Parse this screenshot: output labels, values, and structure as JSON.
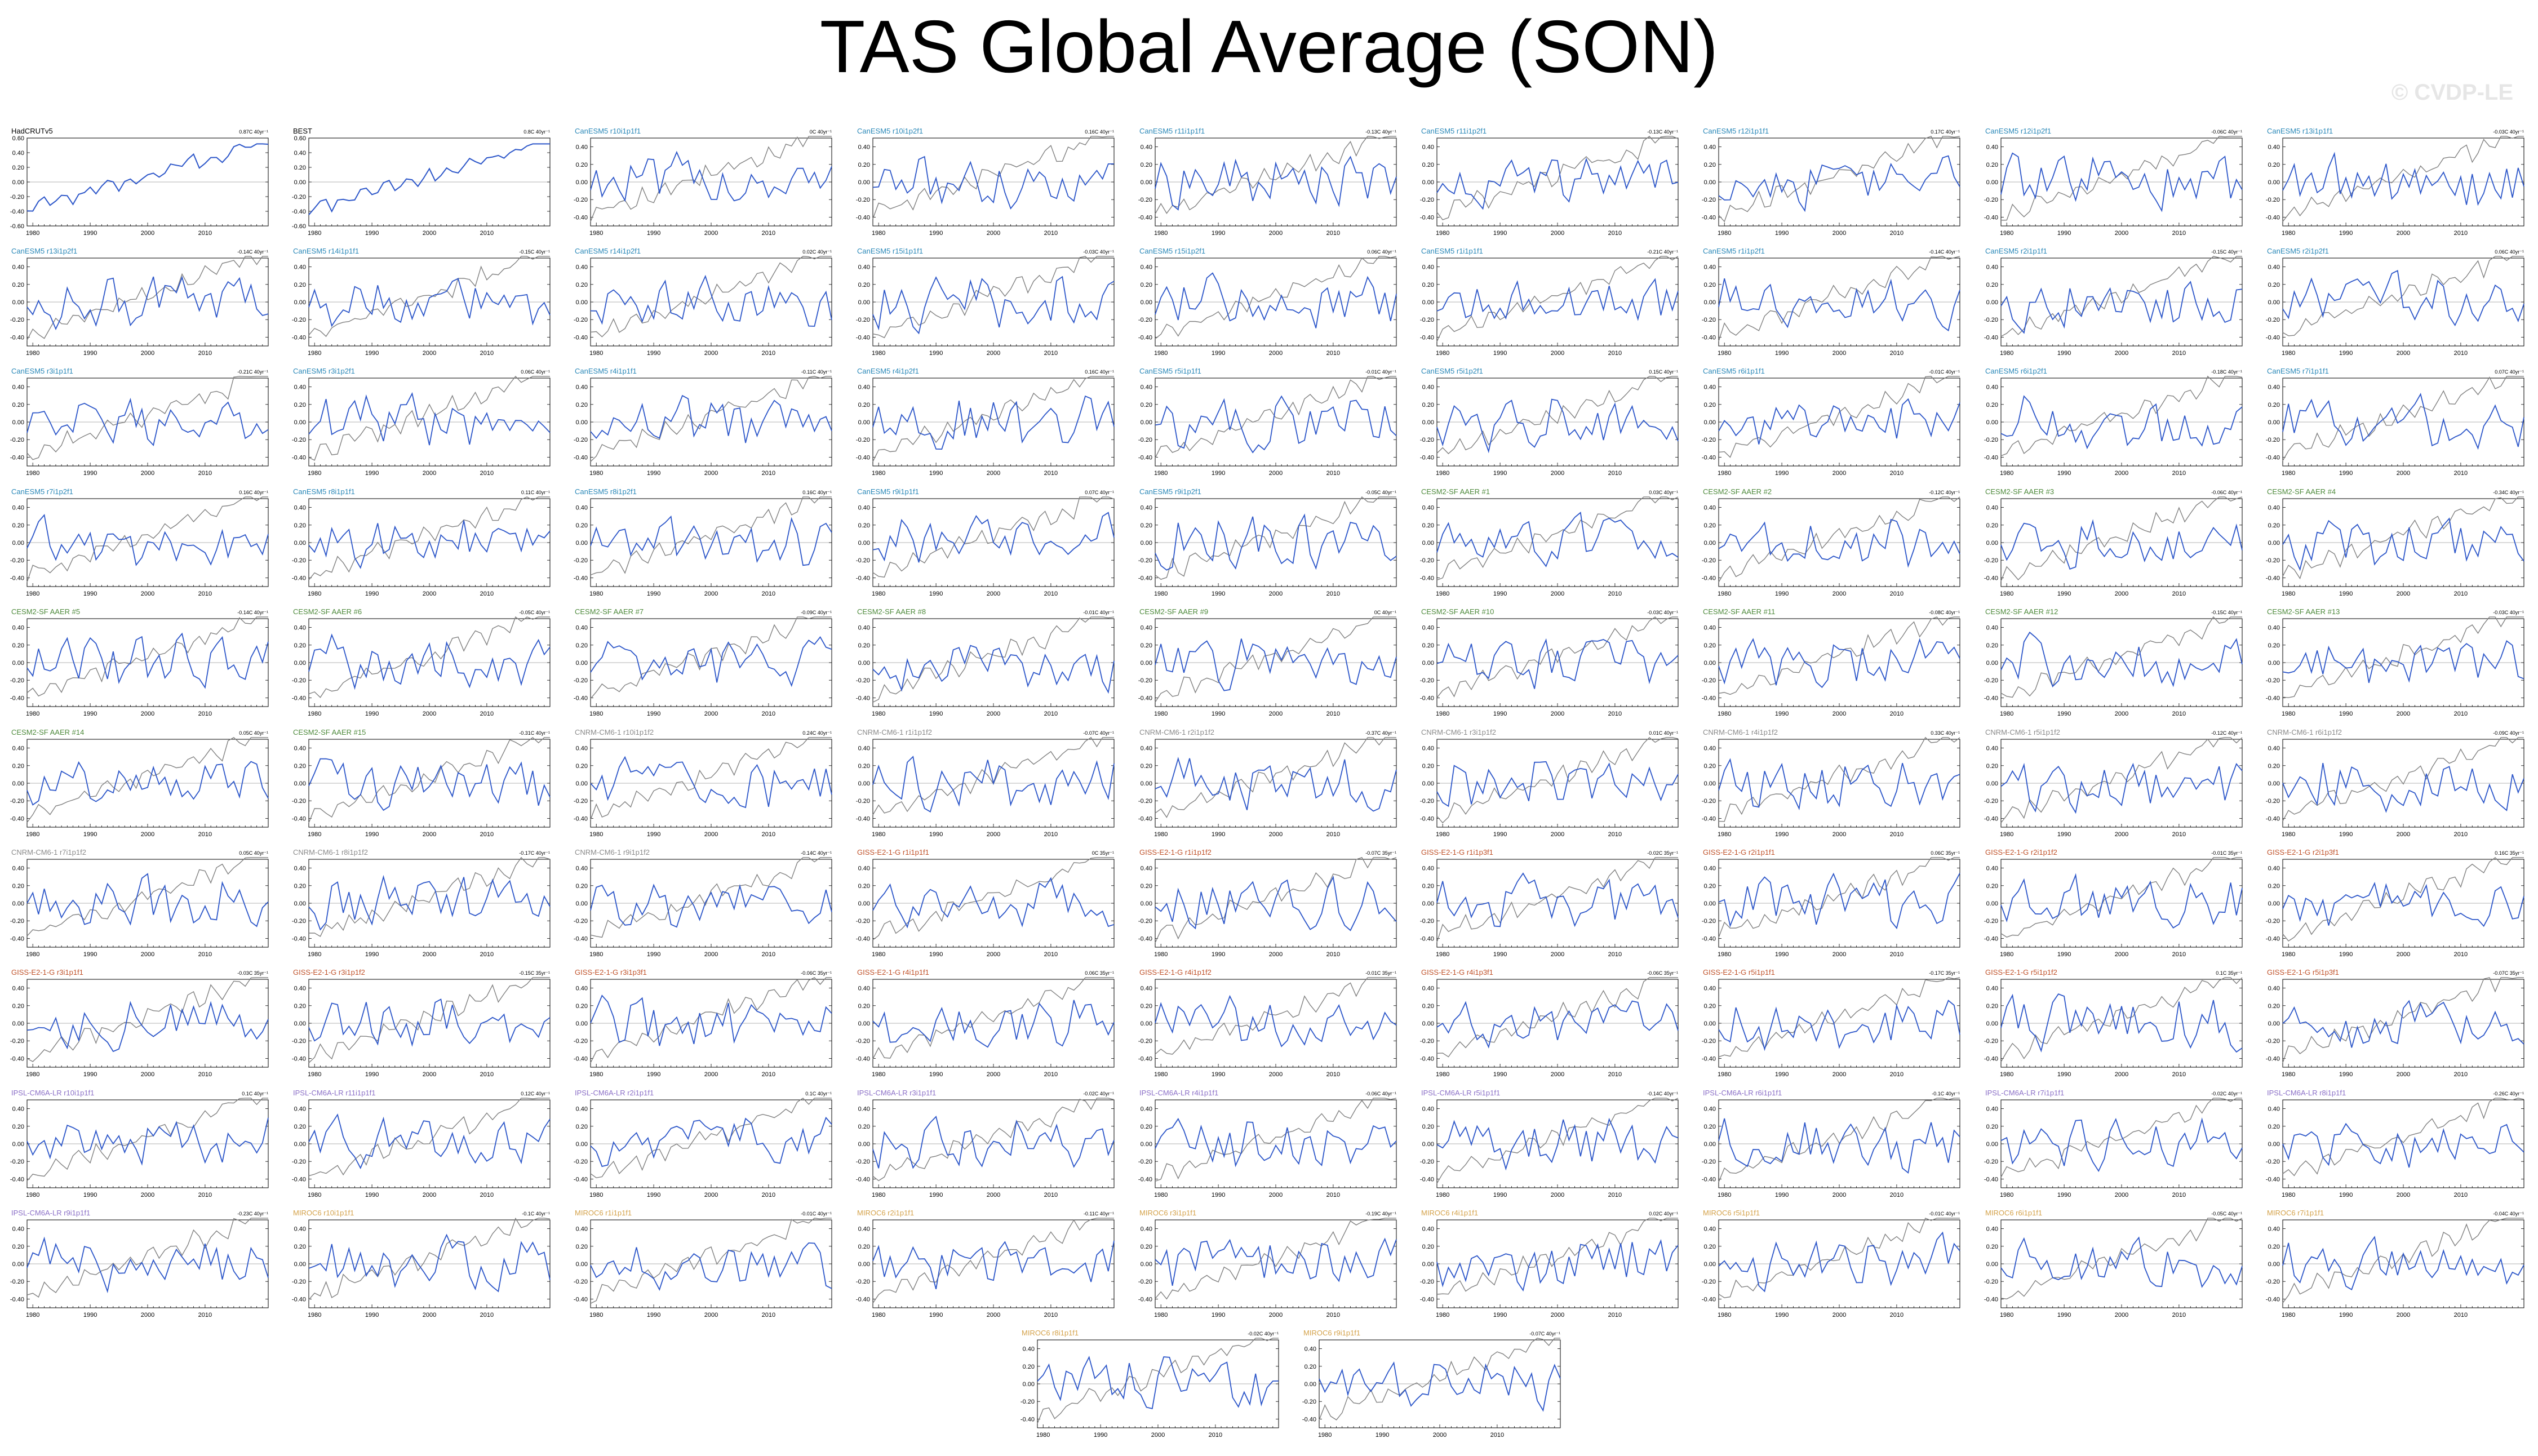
{
  "title": "TAS Global Average (SON)",
  "watermark": "© CVDP-LE",
  "chart_data": {
    "type": "line",
    "x_range": [
      1979,
      2021
    ],
    "x_ticks": [
      1980,
      1990,
      2000,
      2010
    ],
    "obs_y_ticks": [
      "0.60",
      "0.40",
      "0.20",
      "0.00",
      "-0.20",
      "-0.40",
      "-0.60"
    ],
    "model_y_ticks": [
      "0.40",
      "0.20",
      "0.00",
      "-0.20",
      "-0.40"
    ],
    "obs_ylim": [
      -0.6,
      0.6
    ],
    "model_ylim": [
      -0.5,
      0.5
    ],
    "colors": {
      "obs_label": "#000000",
      "CanESM5": "#2a88b8",
      "CESM2-SF AAER": "#4e8a3c",
      "CNRM-CM6-1": "#8a8a8a",
      "GISS-E2-1-G": "#c0522a",
      "IPSL-CM6A-LR": "#8b6fc7",
      "MIROC6": "#d4a24a",
      "model_series": "#2c56c9",
      "obs_overlay": "#808080"
    },
    "panels": [
      {
        "label": "HadCRUTv5",
        "trend": "0.87C 40yr⁻¹",
        "family": "obs_label",
        "obs": true
      },
      {
        "label": "BEST",
        "trend": "0.8C 40yr⁻¹",
        "family": "obs_label",
        "obs": true
      },
      {
        "label": "CanESM5 r10i1p1f1",
        "trend": "0C 40yr⁻¹",
        "family": "CanESM5"
      },
      {
        "label": "CanESM5 r10i1p2f1",
        "trend": "0.16C 40yr⁻¹",
        "family": "CanESM5"
      },
      {
        "label": "CanESM5 r11i1p1f1",
        "trend": "-0.13C 40yr⁻¹",
        "family": "CanESM5"
      },
      {
        "label": "CanESM5 r11i1p2f1",
        "trend": "-0.13C 40yr⁻¹",
        "family": "CanESM5"
      },
      {
        "label": "CanESM5 r12i1p1f1",
        "trend": "0.17C 40yr⁻¹",
        "family": "CanESM5"
      },
      {
        "label": "CanESM5 r12i1p2f1",
        "trend": "-0.06C 40yr⁻¹",
        "family": "CanESM5"
      },
      {
        "label": "CanESM5 r13i1p1f1",
        "trend": "-0.03C 40yr⁻¹",
        "family": "CanESM5"
      },
      {
        "label": "CanESM5 r13i1p2f1",
        "trend": "-0.14C 40yr⁻¹",
        "family": "CanESM5"
      },
      {
        "label": "CanESM5 r14i1p1f1",
        "trend": "-0.15C 40yr⁻¹",
        "family": "CanESM5"
      },
      {
        "label": "CanESM5 r14i1p2f1",
        "trend": "0.02C 40yr⁻¹",
        "family": "CanESM5"
      },
      {
        "label": "CanESM5 r15i1p1f1",
        "trend": "-0.03C 40yr⁻¹",
        "family": "CanESM5"
      },
      {
        "label": "CanESM5 r15i1p2f1",
        "trend": "0.06C 40yr⁻¹",
        "family": "CanESM5"
      },
      {
        "label": "CanESM5 r1i1p1f1",
        "trend": "-0.21C 40yr⁻¹",
        "family": "CanESM5"
      },
      {
        "label": "CanESM5 r1i1p2f1",
        "trend": "-0.14C 40yr⁻¹",
        "family": "CanESM5"
      },
      {
        "label": "CanESM5 r2i1p1f1",
        "trend": "-0.15C 40yr⁻¹",
        "family": "CanESM5"
      },
      {
        "label": "CanESM5 r2i1p2f1",
        "trend": "0.06C 40yr⁻¹",
        "family": "CanESM5"
      },
      {
        "label": "CanESM5 r3i1p1f1",
        "trend": "-0.21C 40yr⁻¹",
        "family": "CanESM5"
      },
      {
        "label": "CanESM5 r3i1p2f1",
        "trend": "0.06C 40yr⁻¹",
        "family": "CanESM5"
      },
      {
        "label": "CanESM5 r4i1p1f1",
        "trend": "-0.11C 40yr⁻¹",
        "family": "CanESM5"
      },
      {
        "label": "CanESM5 r4i1p2f1",
        "trend": "0.16C 40yr⁻¹",
        "family": "CanESM5"
      },
      {
        "label": "CanESM5 r5i1p1f1",
        "trend": "-0.01C 40yr⁻¹",
        "family": "CanESM5"
      },
      {
        "label": "CanESM5 r5i1p2f1",
        "trend": "0.15C 40yr⁻¹",
        "family": "CanESM5"
      },
      {
        "label": "CanESM5 r6i1p1f1",
        "trend": "-0.01C 40yr⁻¹",
        "family": "CanESM5"
      },
      {
        "label": "CanESM5 r6i1p2f1",
        "trend": "-0.18C 40yr⁻¹",
        "family": "CanESM5"
      },
      {
        "label": "CanESM5 r7i1p1f1",
        "trend": "0.07C 40yr⁻¹",
        "family": "CanESM5"
      },
      {
        "label": "CanESM5 r7i1p2f1",
        "trend": "0.16C 40yr⁻¹",
        "family": "CanESM5"
      },
      {
        "label": "CanESM5 r8i1p1f1",
        "trend": "0.11C 40yr⁻¹",
        "family": "CanESM5"
      },
      {
        "label": "CanESM5 r8i1p2f1",
        "trend": "0.16C 40yr⁻¹",
        "family": "CanESM5"
      },
      {
        "label": "CanESM5 r9i1p1f1",
        "trend": "0.07C 40yr⁻¹",
        "family": "CanESM5"
      },
      {
        "label": "CanESM5 r9i1p2f1",
        "trend": "-0.05C 40yr⁻¹",
        "family": "CanESM5"
      },
      {
        "label": "CESM2-SF AAER #1",
        "trend": "0.03C 40yr⁻¹",
        "family": "CESM2-SF AAER"
      },
      {
        "label": "CESM2-SF AAER #2",
        "trend": "-0.12C 40yr⁻¹",
        "family": "CESM2-SF AAER"
      },
      {
        "label": "CESM2-SF AAER #3",
        "trend": "-0.06C 40yr⁻¹",
        "family": "CESM2-SF AAER"
      },
      {
        "label": "CESM2-SF AAER #4",
        "trend": "-0.34C 40yr⁻¹",
        "family": "CESM2-SF AAER"
      },
      {
        "label": "CESM2-SF AAER #5",
        "trend": "-0.14C 40yr⁻¹",
        "family": "CESM2-SF AAER"
      },
      {
        "label": "CESM2-SF AAER #6",
        "trend": "-0.05C 40yr⁻¹",
        "family": "CESM2-SF AAER"
      },
      {
        "label": "CESM2-SF AAER #7",
        "trend": "-0.09C 40yr⁻¹",
        "family": "CESM2-SF AAER"
      },
      {
        "label": "CESM2-SF AAER #8",
        "trend": "-0.01C 40yr⁻¹",
        "family": "CESM2-SF AAER"
      },
      {
        "label": "CESM2-SF AAER #9",
        "trend": "0C 40yr⁻¹",
        "family": "CESM2-SF AAER"
      },
      {
        "label": "CESM2-SF AAER #10",
        "trend": "-0.03C 40yr⁻¹",
        "family": "CESM2-SF AAER"
      },
      {
        "label": "CESM2-SF AAER #11",
        "trend": "-0.08C 40yr⁻¹",
        "family": "CESM2-SF AAER"
      },
      {
        "label": "CESM2-SF AAER #12",
        "trend": "-0.15C 40yr⁻¹",
        "family": "CESM2-SF AAER"
      },
      {
        "label": "CESM2-SF AAER #13",
        "trend": "-0.03C 40yr⁻¹",
        "family": "CESM2-SF AAER"
      },
      {
        "label": "CESM2-SF AAER #14",
        "trend": "0.05C 40yr⁻¹",
        "family": "CESM2-SF AAER"
      },
      {
        "label": "CESM2-SF AAER #15",
        "trend": "-0.31C 40yr⁻¹",
        "family": "CESM2-SF AAER"
      },
      {
        "label": "CNRM-CM6-1 r10i1p1f2",
        "trend": "0.24C 40yr⁻¹",
        "family": "CNRM-CM6-1"
      },
      {
        "label": "CNRM-CM6-1 r1i1p1f2",
        "trend": "-0.07C 40yr⁻¹",
        "family": "CNRM-CM6-1"
      },
      {
        "label": "CNRM-CM6-1 r2i1p1f2",
        "trend": "-0.37C 40yr⁻¹",
        "family": "CNRM-CM6-1"
      },
      {
        "label": "CNRM-CM6-1 r3i1p1f2",
        "trend": "0.01C 40yr⁻¹",
        "family": "CNRM-CM6-1"
      },
      {
        "label": "CNRM-CM6-1 r4i1p1f2",
        "trend": "0.33C 40yr⁻¹",
        "family": "CNRM-CM6-1"
      },
      {
        "label": "CNRM-CM6-1 r5i1p1f2",
        "trend": "-0.12C 40yr⁻¹",
        "family": "CNRM-CM6-1"
      },
      {
        "label": "CNRM-CM6-1 r6i1p1f2",
        "trend": "-0.09C 40yr⁻¹",
        "family": "CNRM-CM6-1"
      },
      {
        "label": "CNRM-CM6-1 r7i1p1f2",
        "trend": "0.05C 40yr⁻¹",
        "family": "CNRM-CM6-1"
      },
      {
        "label": "CNRM-CM6-1 r8i1p1f2",
        "trend": "-0.17C 40yr⁻¹",
        "family": "CNRM-CM6-1"
      },
      {
        "label": "CNRM-CM6-1 r9i1p1f2",
        "trend": "-0.14C 40yr⁻¹",
        "family": "CNRM-CM6-1"
      },
      {
        "label": "GISS-E2-1-G r1i1p1f1",
        "trend": "0C 35yr⁻¹",
        "family": "GISS-E2-1-G"
      },
      {
        "label": "GISS-E2-1-G r1i1p1f2",
        "trend": "-0.07C 35yr⁻¹",
        "family": "GISS-E2-1-G"
      },
      {
        "label": "GISS-E2-1-G r1i1p3f1",
        "trend": "-0.02C 35yr⁻¹",
        "family": "GISS-E2-1-G"
      },
      {
        "label": "GISS-E2-1-G r2i1p1f1",
        "trend": "0.06C 35yr⁻¹",
        "family": "GISS-E2-1-G"
      },
      {
        "label": "GISS-E2-1-G r2i1p1f2",
        "trend": "-0.01C 35yr⁻¹",
        "family": "GISS-E2-1-G"
      },
      {
        "label": "GISS-E2-1-G r2i1p3f1",
        "trend": "0.16C 35yr⁻¹",
        "family": "GISS-E2-1-G"
      },
      {
        "label": "GISS-E2-1-G r3i1p1f1",
        "trend": "-0.03C 35yr⁻¹",
        "family": "GISS-E2-1-G"
      },
      {
        "label": "GISS-E2-1-G r3i1p1f2",
        "trend": "-0.15C 35yr⁻¹",
        "family": "GISS-E2-1-G"
      },
      {
        "label": "GISS-E2-1-G r3i1p3f1",
        "trend": "-0.06C 35yr⁻¹",
        "family": "GISS-E2-1-G"
      },
      {
        "label": "GISS-E2-1-G r4i1p1f1",
        "trend": "0.06C 35yr⁻¹",
        "family": "GISS-E2-1-G"
      },
      {
        "label": "GISS-E2-1-G r4i1p1f2",
        "trend": "-0.01C 35yr⁻¹",
        "family": "GISS-E2-1-G"
      },
      {
        "label": "GISS-E2-1-G r4i1p3f1",
        "trend": "-0.06C 35yr⁻¹",
        "family": "GISS-E2-1-G"
      },
      {
        "label": "GISS-E2-1-G r5i1p1f1",
        "trend": "-0.17C 35yr⁻¹",
        "family": "GISS-E2-1-G"
      },
      {
        "label": "GISS-E2-1-G r5i1p1f2",
        "trend": "0.1C 35yr⁻¹",
        "family": "GISS-E2-1-G"
      },
      {
        "label": "GISS-E2-1-G r5i1p3f1",
        "trend": "-0.07C 35yr⁻¹",
        "family": "GISS-E2-1-G"
      },
      {
        "label": "IPSL-CM6A-LR r10i1p1f1",
        "trend": "0.1C 40yr⁻¹",
        "family": "IPSL-CM6A-LR"
      },
      {
        "label": "IPSL-CM6A-LR r11i1p1f1",
        "trend": "0.12C 40yr⁻¹",
        "family": "IPSL-CM6A-LR"
      },
      {
        "label": "IPSL-CM6A-LR r2i1p1f1",
        "trend": "0.1C 40yr⁻¹",
        "family": "IPSL-CM6A-LR"
      },
      {
        "label": "IPSL-CM6A-LR r3i1p1f1",
        "trend": "-0.02C 40yr⁻¹",
        "family": "IPSL-CM6A-LR"
      },
      {
        "label": "IPSL-CM6A-LR r4i1p1f1",
        "trend": "-0.06C 40yr⁻¹",
        "family": "IPSL-CM6A-LR"
      },
      {
        "label": "IPSL-CM6A-LR r5i1p1f1",
        "trend": "-0.14C 40yr⁻¹",
        "family": "IPSL-CM6A-LR"
      },
      {
        "label": "IPSL-CM6A-LR r6i1p1f1",
        "trend": "-0.1C 40yr⁻¹",
        "family": "IPSL-CM6A-LR"
      },
      {
        "label": "IPSL-CM6A-LR r7i1p1f1",
        "trend": "-0.02C 40yr⁻¹",
        "family": "IPSL-CM6A-LR"
      },
      {
        "label": "IPSL-CM6A-LR r8i1p1f1",
        "trend": "-0.26C 40yr⁻¹",
        "family": "IPSL-CM6A-LR"
      },
      {
        "label": "IPSL-CM6A-LR r9i1p1f1",
        "trend": "-0.23C 40yr⁻¹",
        "family": "IPSL-CM6A-LR"
      },
      {
        "label": "MIROC6 r10i1p1f1",
        "trend": "-0.1C 40yr⁻¹",
        "family": "MIROC6"
      },
      {
        "label": "MIROC6 r1i1p1f1",
        "trend": "-0.01C 40yr⁻¹",
        "family": "MIROC6"
      },
      {
        "label": "MIROC6 r2i1p1f1",
        "trend": "-0.11C 40yr⁻¹",
        "family": "MIROC6"
      },
      {
        "label": "MIROC6 r3i1p1f1",
        "trend": "-0.19C 40yr⁻¹",
        "family": "MIROC6"
      },
      {
        "label": "MIROC6 r4i1p1f1",
        "trend": "0.02C 40yr⁻¹",
        "family": "MIROC6"
      },
      {
        "label": "MIROC6 r5i1p1f1",
        "trend": "-0.01C 40yr⁻¹",
        "family": "MIROC6"
      },
      {
        "label": "MIROC6 r6i1p1f1",
        "trend": "-0.05C 40yr⁻¹",
        "family": "MIROC6"
      },
      {
        "label": "MIROC6 r7i1p1f1",
        "trend": "-0.04C 40yr⁻¹",
        "family": "MIROC6"
      },
      {
        "label": "MIROC6 r8i1p1f1",
        "trend": "-0.02C 40yr⁻¹",
        "family": "MIROC6"
      },
      {
        "label": "MIROC6 r9i1p1f1",
        "trend": "-0.07C 40yr⁻¹",
        "family": "MIROC6"
      }
    ]
  }
}
